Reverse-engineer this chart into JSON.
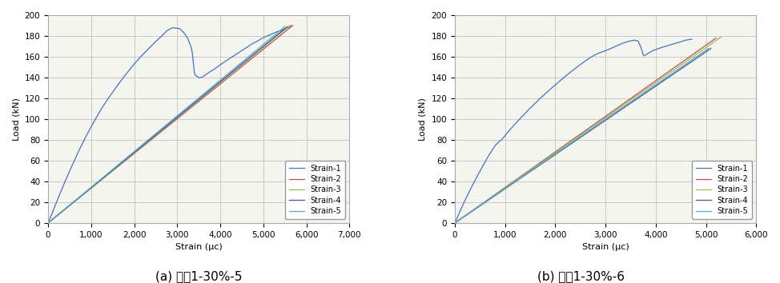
{
  "fig_width": 9.74,
  "fig_height": 3.54,
  "background_color": "#ffffff",
  "subplot_titles": [
    "(a) 손수1-30%-5",
    "(b) 손수1-30%-6"
  ],
  "xlabel": "Strain (μc)",
  "ylabel": "Load (kN)",
  "xlim_a": [
    0,
    7000
  ],
  "ylim_a": [
    0,
    200
  ],
  "xlim_b": [
    0,
    6000
  ],
  "ylim_b": [
    0,
    200
  ],
  "xticks_a": [
    0,
    1000,
    2000,
    3000,
    4000,
    5000,
    6000,
    7000
  ],
  "xticks_b": [
    0,
    1000,
    2000,
    3000,
    4000,
    5000,
    6000
  ],
  "yticks": [
    0,
    20,
    40,
    60,
    80,
    100,
    120,
    140,
    160,
    180,
    200
  ],
  "legend_labels": [
    "Strain-1",
    "Strain-2",
    "Strain-3",
    "Strain-4",
    "Strain-5"
  ],
  "colors": [
    "#4472C4",
    "#C0504D",
    "#9BBB59",
    "#4F4F9F",
    "#4BACC6"
  ],
  "linewidth": 0.9,
  "chart_a": {
    "strain1": {
      "load": [
        0,
        10,
        20,
        30,
        40,
        50,
        60,
        70,
        80,
        90,
        100,
        110,
        120,
        130,
        140,
        150,
        160,
        165,
        170,
        175,
        180,
        185,
        188,
        187,
        183,
        178,
        172,
        168,
        164,
        160,
        156,
        152,
        148,
        145,
        143,
        142,
        141,
        140,
        140,
        142,
        145,
        148,
        152,
        156,
        160,
        164,
        168,
        172,
        175,
        178,
        180,
        182,
        184,
        185,
        187,
        188,
        189,
        190
      ],
      "strain": [
        0,
        100,
        195,
        295,
        395,
        500,
        610,
        720,
        840,
        965,
        1100,
        1240,
        1400,
        1570,
        1750,
        1940,
        2150,
        2270,
        2390,
        2510,
        2640,
        2760,
        2890,
        3060,
        3160,
        3240,
        3300,
        3330,
        3350,
        3360,
        3370,
        3380,
        3390,
        3400,
        3410,
        3430,
        3460,
        3500,
        3560,
        3640,
        3740,
        3860,
        3990,
        4130,
        4280,
        4430,
        4580,
        4720,
        4860,
        4980,
        5090,
        5200,
        5310,
        5410,
        5500,
        5570,
        5620,
        5660
      ]
    },
    "strain2": {
      "load": [
        0,
        190
      ],
      "strain": [
        0,
        5680
      ]
    },
    "strain3": {
      "load": [
        0,
        190
      ],
      "strain": [
        0,
        5620
      ]
    },
    "strain4": {
      "load": [
        0,
        189
      ],
      "strain": [
        0,
        5560
      ]
    },
    "strain5": {
      "load": [
        0,
        189
      ],
      "strain": [
        0,
        5500
      ]
    }
  },
  "chart_b": {
    "strain1": {
      "load": [
        0,
        10,
        20,
        30,
        40,
        50,
        60,
        65,
        70,
        75,
        78,
        80,
        90,
        100,
        110,
        120,
        130,
        140,
        150,
        155,
        160,
        163,
        165,
        167,
        170,
        173,
        175,
        176,
        175,
        170,
        165,
        162,
        161,
        162,
        164,
        166,
        168,
        170,
        172,
        174,
        176,
        177
      ],
      "strain": [
        0,
        90,
        185,
        285,
        390,
        500,
        615,
        675,
        740,
        810,
        875,
        930,
        1100,
        1290,
        1490,
        1700,
        1930,
        2170,
        2430,
        2570,
        2720,
        2840,
        2950,
        3060,
        3200,
        3340,
        3470,
        3580,
        3650,
        3700,
        3730,
        3750,
        3770,
        3810,
        3870,
        3950,
        4060,
        4190,
        4330,
        4470,
        4600,
        4720
      ]
    },
    "strain2": {
      "load": [
        0,
        178
      ],
      "strain": [
        0,
        5200
      ]
    },
    "strain3": {
      "load": [
        0,
        179
      ],
      "strain": [
        0,
        5300
      ]
    },
    "strain4": {
      "load": [
        0,
        168
      ],
      "strain": [
        0,
        5100
      ]
    },
    "strain5": {
      "load": [
        0,
        168
      ],
      "strain": [
        0,
        5050
      ]
    }
  }
}
